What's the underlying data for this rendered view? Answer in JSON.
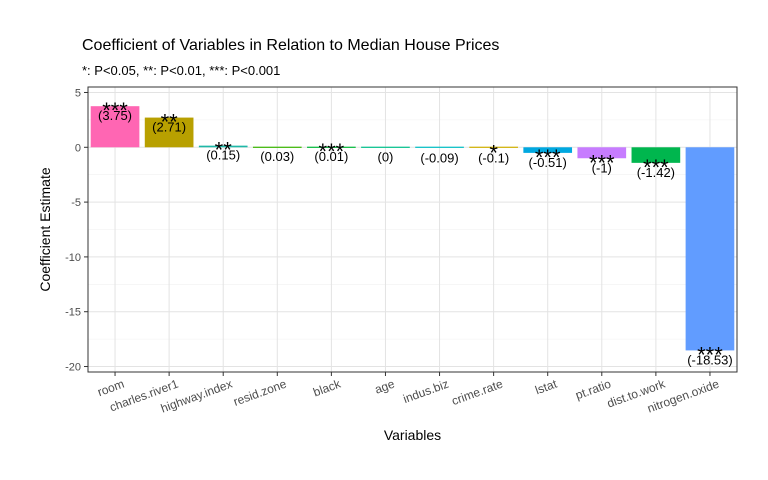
{
  "chart_data": {
    "type": "bar",
    "title": "Coefficient of Variables in Relation to Median House Prices",
    "subtitle": "*: P<0.05, **: P<0.01, ***: P<0.001",
    "xlabel": "Variables",
    "ylabel": "Coefficient Estimate",
    "ylim": [
      -20.5,
      5.5
    ],
    "yticks": [
      5,
      0,
      -5,
      -10,
      -15,
      -20
    ],
    "ytick_labels": [
      "5",
      "0",
      "-5",
      "-10",
      "-15",
      "-20"
    ],
    "grid": true,
    "legend": "none",
    "categories": [
      "room",
      "charles.river1",
      "highway.index",
      "resid.zone",
      "black",
      "age",
      "indus.biz",
      "crime.rate",
      "lstat",
      "pt.ratio",
      "dist.to.work",
      "nitrogen.oxide"
    ],
    "values": [
      3.75,
      2.71,
      0.15,
      0.03,
      0.01,
      0,
      -0.09,
      -0.1,
      -0.51,
      -1,
      -1.42,
      -18.53
    ],
    "value_labels": [
      "(3.75)",
      "(2.71)",
      "(0.15)",
      "(0.03)",
      "(0.01)",
      "(0)",
      "(-0.09)",
      "(-0.1)",
      "(-0.51)",
      "(-1)",
      "(-1.42)",
      "(-18.53)"
    ],
    "significance": [
      "***",
      "**",
      "**",
      "",
      "***",
      "",
      "",
      "*",
      "***",
      "***",
      "***",
      "***"
    ],
    "colors": [
      "#FF66B3",
      "#B8A000",
      "#1FB8A8",
      "#39B600",
      "#00BA38",
      "#00C08B",
      "#00BFC4",
      "#D1B000",
      "#00A8E0",
      "#C77CFF",
      "#00B64E",
      "#619CFF"
    ]
  }
}
